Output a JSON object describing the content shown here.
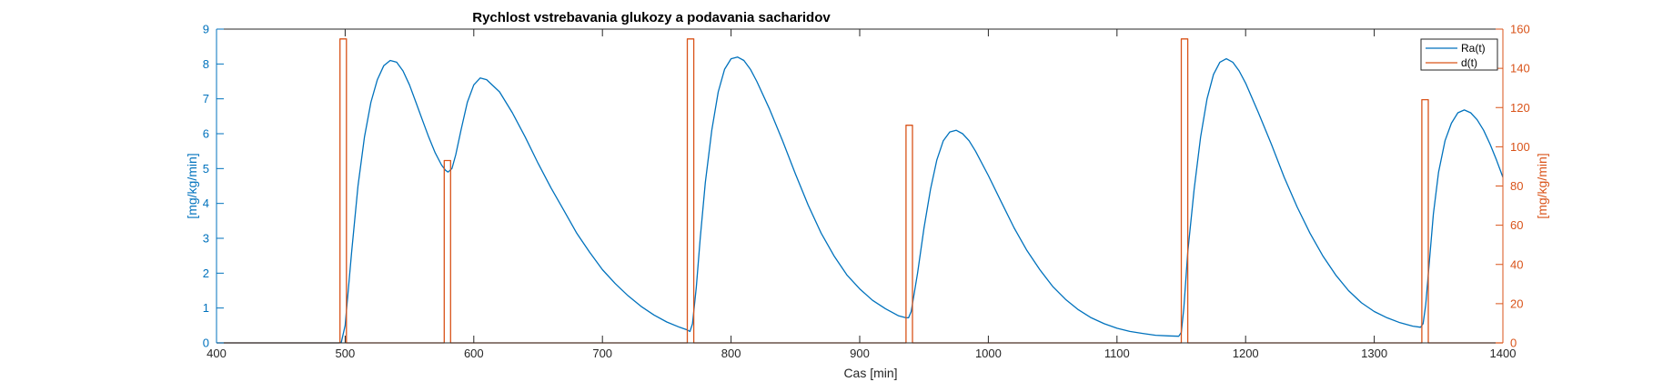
{
  "chart_data": {
    "type": "line",
    "title": "Rychlost vstrebavania glukozy a podavania sacharidov",
    "xlabel": "Cas [min]",
    "ylabel_left": "[mg/kg/min]",
    "ylabel_right": "[mg/kg/min]",
    "xlim": [
      400,
      1400
    ],
    "ylim_left": [
      0,
      9
    ],
    "ylim_right": [
      0,
      160
    ],
    "x_ticks": [
      400,
      500,
      600,
      700,
      800,
      900,
      1000,
      1100,
      1200,
      1300,
      1400
    ],
    "y_ticks_left": [
      0,
      1,
      2,
      3,
      4,
      5,
      6,
      7,
      8,
      9
    ],
    "y_ticks_right": [
      0,
      20,
      40,
      60,
      80,
      100,
      120,
      140,
      160
    ],
    "legend_position": "top-right",
    "grid": false,
    "colors": {
      "left_axis": "#0072BD",
      "right_axis": "#D95319",
      "ra": "#0072BD",
      "d": "#D95319"
    },
    "series": [
      {
        "name": "Ra(t)",
        "axis": "left",
        "x": [
          400,
          495,
          497,
          500,
          505,
          510,
          515,
          520,
          525,
          530,
          535,
          540,
          545,
          550,
          555,
          560,
          565,
          570,
          575,
          578,
          580,
          583,
          586,
          590,
          595,
          600,
          605,
          610,
          620,
          630,
          640,
          650,
          660,
          670,
          680,
          690,
          700,
          710,
          720,
          730,
          740,
          750,
          760,
          766,
          768,
          770,
          773,
          776,
          780,
          785,
          790,
          795,
          800,
          805,
          810,
          815,
          820,
          830,
          840,
          850,
          860,
          870,
          880,
          890,
          900,
          910,
          920,
          930,
          936,
          938,
          940,
          945,
          950,
          955,
          960,
          965,
          970,
          975,
          980,
          985,
          990,
          1000,
          1010,
          1020,
          1030,
          1040,
          1050,
          1060,
          1070,
          1080,
          1090,
          1100,
          1110,
          1120,
          1130,
          1140,
          1148,
          1150,
          1152,
          1155,
          1160,
          1165,
          1170,
          1175,
          1180,
          1185,
          1190,
          1195,
          1200,
          1210,
          1220,
          1230,
          1240,
          1250,
          1260,
          1270,
          1280,
          1290,
          1300,
          1310,
          1320,
          1330,
          1336,
          1338,
          1340,
          1343,
          1346,
          1350,
          1355,
          1360,
          1365,
          1370,
          1375,
          1380,
          1385,
          1390,
          1395,
          1400
        ],
        "y": [
          0,
          0,
          0.02,
          0.5,
          2.6,
          4.5,
          5.9,
          6.9,
          7.55,
          7.95,
          8.1,
          8.05,
          7.8,
          7.4,
          6.9,
          6.4,
          5.9,
          5.45,
          5.1,
          4.95,
          4.9,
          5.0,
          5.4,
          6.1,
          6.9,
          7.4,
          7.6,
          7.55,
          7.2,
          6.6,
          5.9,
          5.15,
          4.45,
          3.8,
          3.15,
          2.6,
          2.1,
          1.7,
          1.35,
          1.05,
          0.8,
          0.6,
          0.45,
          0.37,
          0.33,
          0.55,
          1.6,
          3.0,
          4.6,
          6.1,
          7.2,
          7.85,
          8.15,
          8.2,
          8.1,
          7.85,
          7.5,
          6.7,
          5.8,
          4.85,
          3.95,
          3.15,
          2.5,
          1.95,
          1.55,
          1.22,
          0.98,
          0.78,
          0.72,
          0.72,
          0.9,
          2.0,
          3.3,
          4.4,
          5.25,
          5.8,
          6.05,
          6.1,
          6.0,
          5.8,
          5.5,
          4.8,
          4.05,
          3.3,
          2.65,
          2.1,
          1.62,
          1.25,
          0.95,
          0.72,
          0.55,
          0.42,
          0.33,
          0.27,
          0.22,
          0.2,
          0.19,
          0.3,
          1.0,
          2.6,
          4.4,
          5.9,
          7.0,
          7.7,
          8.05,
          8.15,
          8.05,
          7.8,
          7.45,
          6.6,
          5.7,
          4.75,
          3.9,
          3.15,
          2.5,
          1.95,
          1.5,
          1.15,
          0.9,
          0.72,
          0.58,
          0.48,
          0.45,
          0.55,
          1.1,
          2.4,
          3.7,
          4.9,
          5.8,
          6.3,
          6.6,
          6.68,
          6.6,
          6.4,
          6.1,
          5.7,
          5.25,
          4.75
        ]
      },
      {
        "name": "d(t)",
        "axis": "right",
        "x": [
          400,
          496,
          496,
          501,
          501,
          577,
          577,
          582,
          582,
          766,
          766,
          771,
          771,
          936,
          936,
          941,
          941,
          1150,
          1150,
          1155,
          1155,
          1337,
          1337,
          1342,
          1342,
          1400
        ],
        "y": [
          0,
          0,
          155,
          155,
          0,
          0,
          93,
          93,
          0,
          0,
          155,
          155,
          0,
          0,
          111,
          111,
          0,
          0,
          155,
          155,
          0,
          0,
          124,
          124,
          0,
          0
        ]
      }
    ]
  }
}
